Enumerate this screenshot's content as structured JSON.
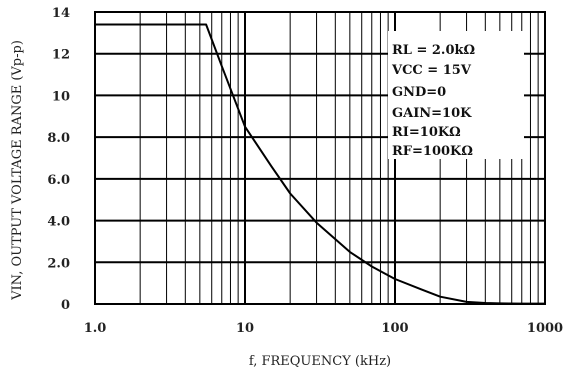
{
  "chart_data": {
    "type": "line",
    "x_scale": "log",
    "xlim": [
      1.0,
      1000
    ],
    "ylim": [
      0,
      14
    ],
    "xlabel": "f, FREQUENCY (kHz)",
    "ylabel": "VIN, OUTPUT VOLTAGE RANGE (Vp-p)",
    "x_tick_labels": [
      "1.0",
      "10",
      "100",
      "1000"
    ],
    "y_ticks": [
      0,
      2,
      4,
      6,
      8,
      10,
      12,
      14
    ],
    "y_tick_labels": [
      "0",
      "2.0",
      "4.0",
      "6.0",
      "8.0",
      "10",
      "12",
      "14"
    ],
    "grid": true,
    "legend_placement": "top-right",
    "annotation_lines": [
      "RL = 2.0kΩ",
      "VCC = 15V",
      "GND=0",
      "GAIN=10K",
      "RI=10KΩ",
      "RF=100KΩ"
    ],
    "series": [
      {
        "x": [
          1.0,
          2.0,
          4.0,
          5.5,
          7,
          10,
          15,
          20,
          30,
          50,
          70,
          100,
          150,
          200,
          300,
          400,
          500,
          700,
          1000
        ],
        "y": [
          13.4,
          13.4,
          13.4,
          13.4,
          11.4,
          8.5,
          6.6,
          5.3,
          3.9,
          2.5,
          1.8,
          1.2,
          0.7,
          0.35,
          0.1,
          0.05,
          0.03,
          0.02,
          0.02
        ]
      }
    ]
  }
}
